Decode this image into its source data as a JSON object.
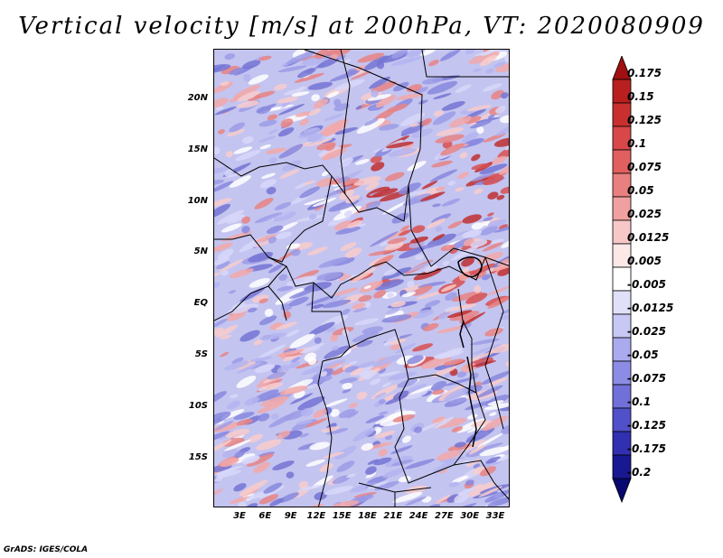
{
  "title": "Vertical velocity [m/s] at 200hPa, VT: 2020080909",
  "credit": "GrADS: IGES/COLA",
  "y_ticks": [
    "20N",
    "15N",
    "10N",
    "5N",
    "EQ",
    "5S",
    "10S",
    "15S"
  ],
  "x_ticks": [
    "3E",
    "6E",
    "9E",
    "12E",
    "15E",
    "18E",
    "21E",
    "24E",
    "27E",
    "30E",
    "33E"
  ],
  "colorbar": {
    "labels": [
      "0.175",
      "0.15",
      "0.125",
      "0.1",
      "0.075",
      "0.05",
      "0.025",
      "0.0125",
      "0.005",
      "-0.005",
      "-0.0125",
      "-0.025",
      "-0.05",
      "-0.075",
      "-0.1",
      "-0.125",
      "-0.175",
      "-0.2"
    ],
    "colors": [
      "#a01010",
      "#b82020",
      "#c83030",
      "#d84848",
      "#e06060",
      "#e88080",
      "#f0a0a0",
      "#f8c8c8",
      "#fde8e8",
      "#ffffff",
      "#e0e0f8",
      "#c8c8f4",
      "#aaaaee",
      "#8c8ce4",
      "#7070d8",
      "#5050c8",
      "#3030b0",
      "#181890",
      "#080870"
    ]
  }
}
